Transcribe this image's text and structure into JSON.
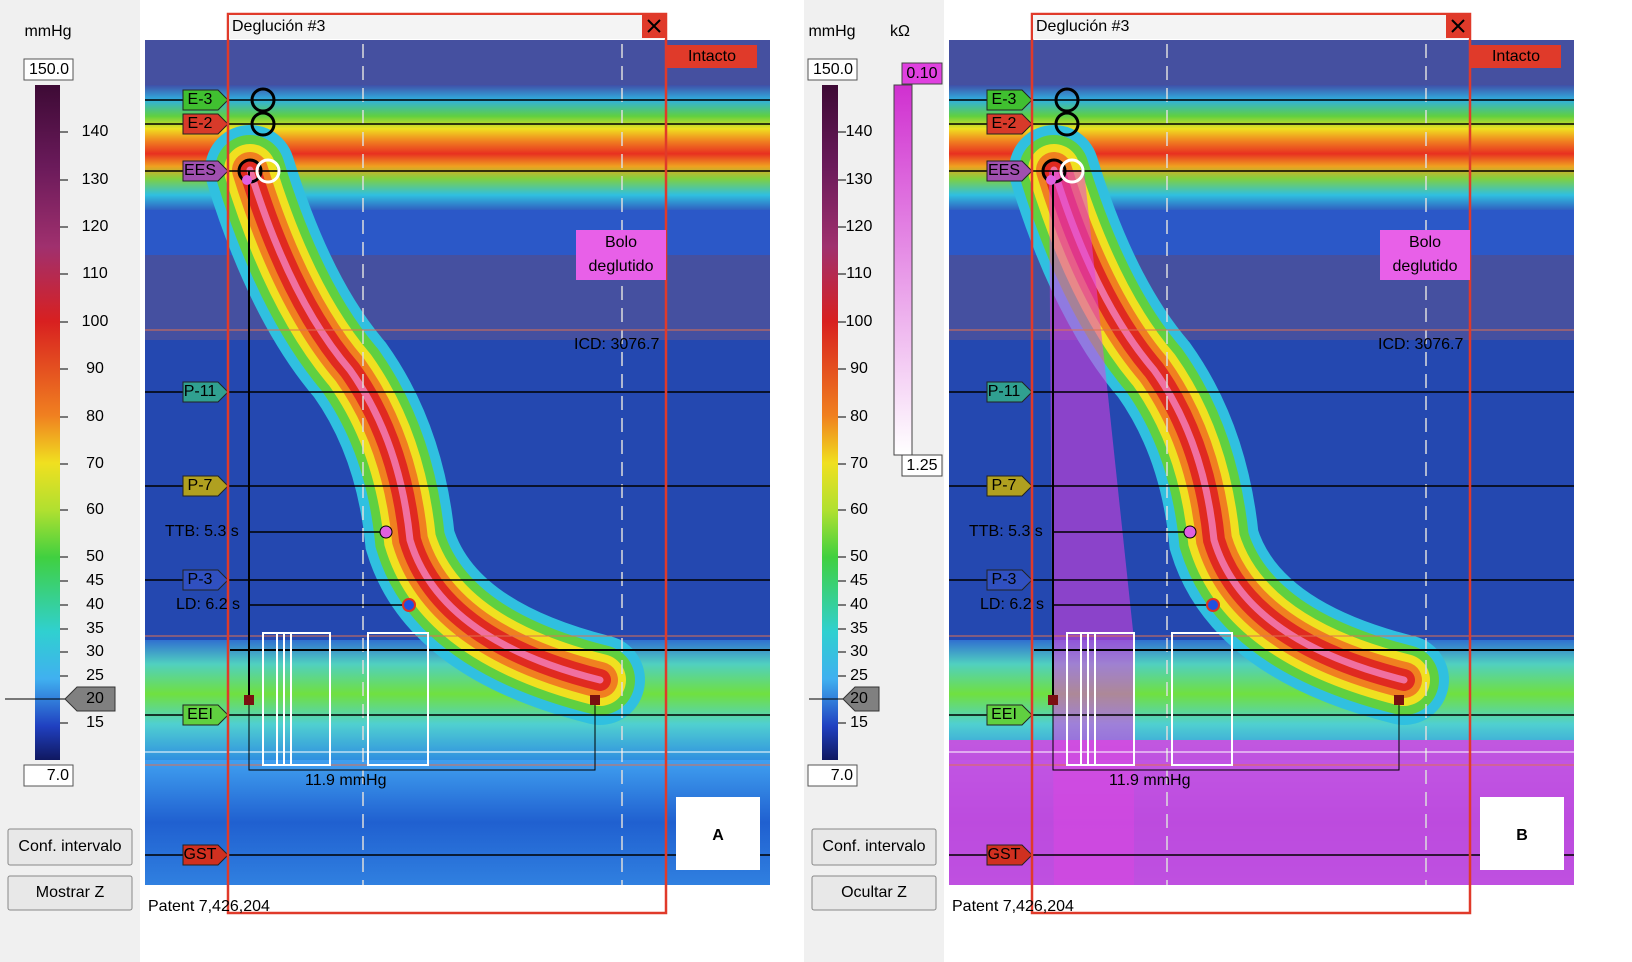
{
  "panels": [
    {
      "letter": "A",
      "units": "mmHg",
      "scale_max": "150.0",
      "scale_min": "7.0",
      "scale_labels": [
        140,
        130,
        120,
        110,
        100,
        90,
        80,
        70,
        60,
        50,
        45,
        40,
        35,
        30,
        25,
        20,
        15
      ],
      "buttons": [
        "Conf. intervalo",
        "Mostrar Z"
      ],
      "window_title": "Deglución #3",
      "status": "Intacto",
      "sensors": [
        "E-3",
        "E-2",
        "EES",
        "P-11",
        "P-7",
        "P-3",
        "EEI",
        "GST"
      ],
      "annotation": [
        "Bolo",
        "deglutido"
      ],
      "icd": "ICD: 3076.7",
      "ttb": "TTB: 5.3 s",
      "ld": "LD: 6.2 s",
      "pressure": "11.9 mmHg",
      "patent": "Patent 7,426,204"
    },
    {
      "letter": "B",
      "units": "mmHg",
      "scale_max": "150.0",
      "scale_min": "7.0",
      "scale_labels": [
        140,
        130,
        120,
        110,
        100,
        90,
        80,
        70,
        60,
        50,
        45,
        40,
        35,
        30,
        25,
        20,
        15
      ],
      "buttons": [
        "Conf. intervalo",
        "Ocultar Z"
      ],
      "window_title": "Deglución #3",
      "status": "Intacto",
      "sensors": [
        "E-3",
        "E-2",
        "EES",
        "P-11",
        "P-7",
        "P-3",
        "EEI",
        "GST"
      ],
      "annotation": [
        "Bolo",
        "deglutido"
      ],
      "icd": "ICD: 3076.7",
      "ttb": "TTB: 5.3 s",
      "ld": "LD: 6.2 s",
      "pressure": "11.9 mmHg",
      "patent": "Patent 7,426,204",
      "impedance": {
        "units": "kΩ",
        "max": "0.10",
        "min": "1.25"
      }
    }
  ]
}
